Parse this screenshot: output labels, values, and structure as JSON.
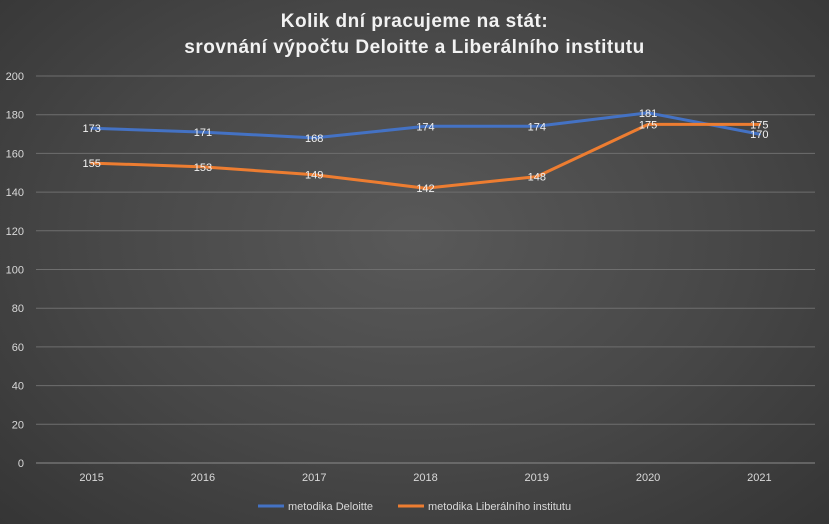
{
  "chart_data": {
    "type": "line",
    "title": [
      "Kolik dní pracujeme na stát:",
      "srovnání výpočtu Deloitte a Liberálního institutu"
    ],
    "categories": [
      "2015",
      "2016",
      "2017",
      "2018",
      "2019",
      "2020",
      "2021"
    ],
    "series": [
      {
        "name": "metodika Deloitte",
        "color": "#4472c4",
        "values": [
          173,
          171,
          168,
          174,
          174,
          181,
          170
        ]
      },
      {
        "name": "metodika Liberálního institutu",
        "color": "#ed7d31",
        "values": [
          155,
          153,
          149,
          142,
          148,
          175,
          175
        ]
      }
    ],
    "ylim": [
      0,
      200
    ],
    "yticks": [
      "0",
      "20",
      "40",
      "60",
      "80",
      "100",
      "120",
      "140",
      "160",
      "180",
      "200"
    ],
    "grid": true,
    "legend": "bottom",
    "data_labels": true
  }
}
